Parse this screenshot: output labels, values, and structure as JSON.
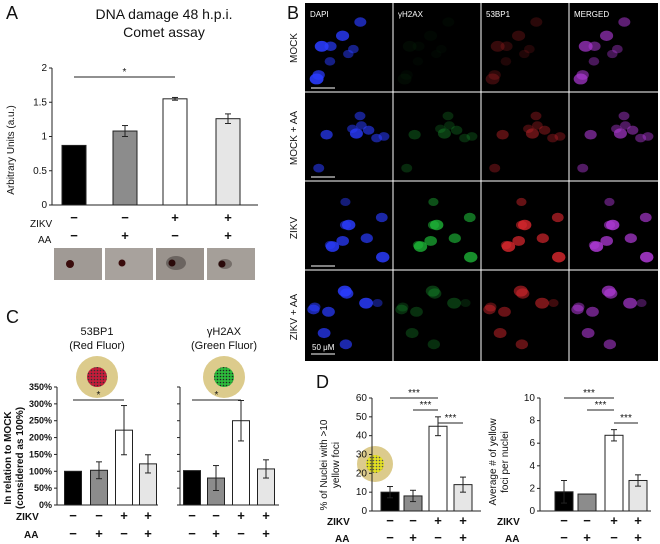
{
  "panel_a": {
    "letter": "A",
    "title_line1": "DNA damage 48 h.p.i.",
    "title_line2": "Comet assay",
    "ylabel": "Arbitrary Units (a.u.)",
    "sig": "*",
    "row1_label": "ZIKV",
    "row2_label": "AA",
    "zikv_marks": [
      "−",
      "−",
      "+",
      "+"
    ],
    "aa_marks": [
      "−",
      "+",
      "−",
      "+"
    ]
  },
  "panel_b": {
    "letter": "B",
    "col_headers": [
      "DAPI",
      "γH2AX",
      "53BP1",
      "MERGED"
    ],
    "row_labels": [
      "MOCK",
      "MOCK + AA",
      "ZIKV",
      "ZIKV + AA"
    ],
    "scale_label": "50 μM",
    "colors": {
      "dapi": "#2a3cff",
      "gh2ax": "#1fbf3a",
      "bp1": "#e0282f",
      "merged": "#b03ad8"
    }
  },
  "panel_c": {
    "letter": "C",
    "icon1_line1": "53BP1",
    "icon1_line2": "(Red Fluor)",
    "icon2_line1": "γH2AX",
    "icon2_line2": "(Green Fluor)",
    "ylabel_line1": "In relation to MOCK",
    "ylabel_line2": "(considered as 100%)",
    "sig1": "*",
    "sig2": "*",
    "row1_label": "ZIKV",
    "row2_label": "AA",
    "zikv_marks": [
      "−",
      "−",
      "+",
      "+"
    ],
    "aa_marks": [
      "−",
      "+",
      "−",
      "+"
    ]
  },
  "panel_d": {
    "letter": "D",
    "ylabel1_line1": "% of Nuclei with >10",
    "ylabel1_line2": "yellow foci",
    "ylabel2_line1": "Average # of yellow",
    "ylabel2_line2": "foci per nuclei",
    "sig": "***",
    "row1_label": "ZIKV",
    "row2_label": "AA",
    "zikv_marks": [
      "−",
      "−",
      "+",
      "+"
    ],
    "aa_marks": [
      "−",
      "+",
      "−",
      "+"
    ]
  },
  "chart_data": [
    {
      "id": "A",
      "type": "bar",
      "title": "DNA damage 48 h.p.i. Comet assay",
      "ylabel": "Arbitrary Units (a.u.)",
      "ylim": [
        0,
        2
      ],
      "yticks": [
        0,
        0.5,
        1,
        1.5,
        2
      ],
      "ytick_labels": [
        "0",
        "0.5",
        "1",
        "1.5",
        "2"
      ],
      "values": [
        0.87,
        1.08,
        1.55,
        1.26
      ],
      "errors": [
        0,
        0.08,
        0.02,
        0.07
      ],
      "colors": [
        "#000000",
        "#8c8c8c",
        "#ffffff",
        "#e6e6e6"
      ]
    },
    {
      "id": "C1",
      "type": "bar",
      "title": "53BP1 (Red Fluor)",
      "ylabel": "In relation to MOCK (considered as 100%)",
      "ylim": [
        0,
        350
      ],
      "yticks": [
        0,
        50,
        100,
        150,
        200,
        250,
        300,
        350
      ],
      "ytick_labels": [
        "0%",
        "50%",
        "100%",
        "150%",
        "200%",
        "250%",
        "300%",
        "350%"
      ],
      "values": [
        100,
        103,
        222,
        122
      ],
      "errors": [
        0,
        25,
        73,
        27
      ],
      "colors": [
        "#000000",
        "#8c8c8c",
        "#ffffff",
        "#e6e6e6"
      ]
    },
    {
      "id": "C2",
      "type": "bar",
      "title": "γH2AX (Green Fluor)",
      "ylim": [
        0,
        350
      ],
      "yticks": [
        0,
        50,
        100,
        150,
        200,
        250,
        300,
        350
      ],
      "values": [
        102,
        80,
        250,
        107
      ],
      "errors": [
        0,
        37,
        60,
        27
      ],
      "colors": [
        "#000000",
        "#8c8c8c",
        "#ffffff",
        "#e6e6e6"
      ]
    },
    {
      "id": "D1",
      "type": "bar",
      "ylabel": "% of Nuclei with >10 yellow foci",
      "ylim": [
        0,
        60
      ],
      "yticks": [
        0,
        10,
        20,
        30,
        40,
        50,
        60
      ],
      "ytick_labels": [
        "0",
        "10",
        "20",
        "30",
        "40",
        "50",
        "60"
      ],
      "values": [
        10,
        8,
        45,
        14
      ],
      "errors": [
        3,
        3,
        5,
        4
      ],
      "colors": [
        "#000000",
        "#8c8c8c",
        "#ffffff",
        "#e6e6e6"
      ]
    },
    {
      "id": "D2",
      "type": "bar",
      "ylabel": "Average # of yellow foci per nuclei",
      "ylim": [
        0,
        10
      ],
      "yticks": [
        0,
        2,
        4,
        6,
        8,
        10
      ],
      "ytick_labels": [
        "0",
        "2",
        "4",
        "6",
        "8",
        "10"
      ],
      "values": [
        1.7,
        1.5,
        6.7,
        2.7
      ],
      "errors": [
        1.0,
        0,
        0.5,
        0.5
      ],
      "colors": [
        "#000000",
        "#8c8c8c",
        "#ffffff",
        "#e6e6e6"
      ]
    }
  ]
}
